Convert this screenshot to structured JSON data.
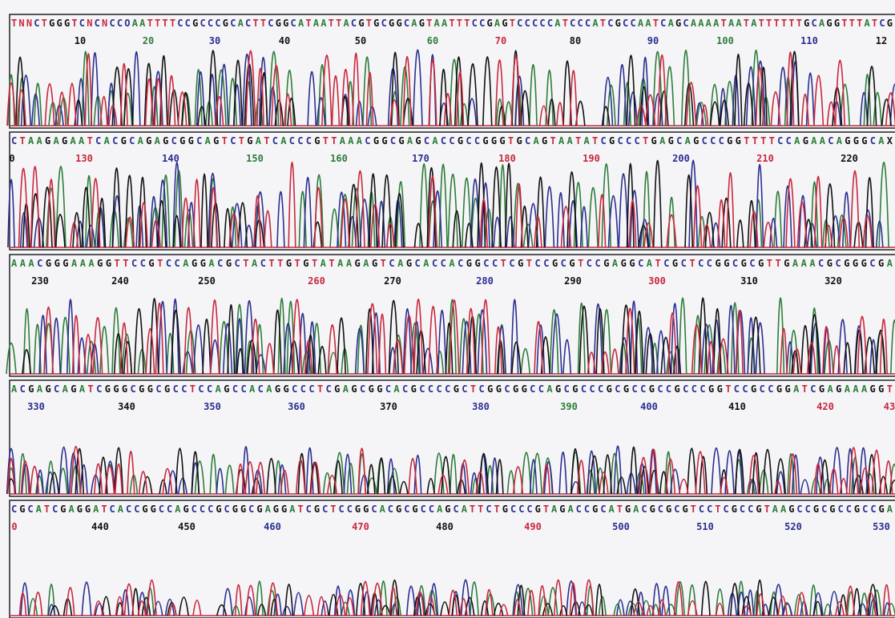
{
  "rows": [
    {
      "sequence": "TNNCTGGGTCNCNCCOAATTTTCCGCCCGCACTTCGGCATAATTACGTGCGGCAGTAATTTCCGAGTCCCCCATCCCATCGCCAATCAGCAAAATAATATTTTTTGCAGGTTTATCG",
      "positions": [
        "10",
        "20",
        "30",
        "40",
        "50",
        "60",
        "70",
        "80",
        "90",
        "100",
        "110",
        "12"
      ]
    },
    {
      "sequence": "CTAAGAGAATCACGCAGAGCGGCAGTCTGATCACCCGTTAAACGGCGAGCACCGCCGGGTGCAGTAATATCGCCCTGAGCAGCCCGGTTTTCCAGAACAGGGCAX",
      "positions": [
        "0",
        "130",
        "140",
        "150",
        "160",
        "170",
        "180",
        "190",
        "200",
        "210",
        "220"
      ]
    },
    {
      "sequence": "AAACGGGAAAGGTTCCGTCCAGGACGCTACTTGTGTATAAGAGTCAGCACCACGGCCTCGTCCGCGTCCGAGGCATCGCTCCGGCGCGTTGAAACGCGGGCGA",
      "positions": [
        "230",
        "240",
        "250",
        "260",
        "270",
        "280",
        "290",
        "300",
        "310",
        "320"
      ]
    },
    {
      "sequence": "ACGAGCAGATCGGGCGGCGCCTCCAGCCACAGGCCCTCGAGCGGCACGCCCCGCTCGGCGGCCAGCGCCCGCGCCGCCGCCCGGTCCGCCGGATCGAGAAAGGT",
      "positions": [
        "330",
        "340",
        "350",
        "360",
        "370",
        "380",
        "390",
        "400",
        "410",
        "420",
        "43"
      ]
    },
    {
      "sequence": "CGCATCGAGGATCACCGGCCAGCCCGCGGCGAGGATCGCTCCGGCACGCGCCAGCATTCTGCCCGTAGACCGCATGACGCGCGTCCTCGCCGTAAGCCGCGCCGCCGA",
      "positions": [
        "0",
        "440",
        "450",
        "460",
        "470",
        "480",
        "490",
        "500",
        "510",
        "520",
        "530"
      ]
    }
  ]
}
